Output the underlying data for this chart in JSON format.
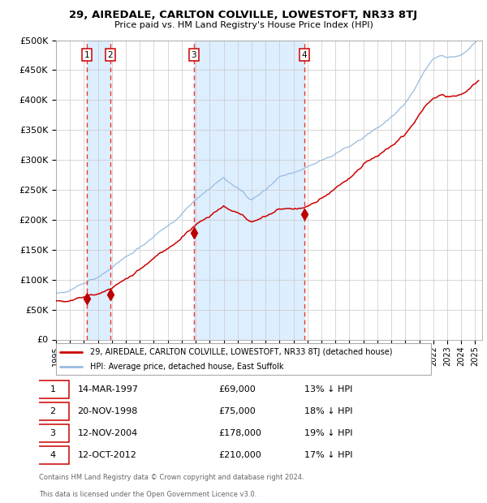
{
  "title": "29, AIREDALE, CARLTON COLVILLE, LOWESTOFT, NR33 8TJ",
  "subtitle": "Price paid vs. HM Land Registry's House Price Index (HPI)",
  "legend_line1": "29, AIREDALE, CARLTON COLVILLE, LOWESTOFT, NR33 8TJ (detached house)",
  "legend_line2": "HPI: Average price, detached house, East Suffolk",
  "footer1": "Contains HM Land Registry data © Crown copyright and database right 2024.",
  "footer2": "This data is licensed under the Open Government Licence v3.0.",
  "sale_events": [
    {
      "num": 1,
      "date": "14-MAR-1997",
      "price": 69000,
      "pct": "13%",
      "x_year": 1997.21
    },
    {
      "num": 2,
      "date": "20-NOV-1998",
      "price": 75000,
      "pct": "18%",
      "x_year": 1998.88
    },
    {
      "num": 3,
      "date": "12-NOV-2004",
      "price": 178000,
      "pct": "19%",
      "x_year": 2004.87
    },
    {
      "num": 4,
      "date": "12-OCT-2012",
      "price": 210000,
      "pct": "17%",
      "x_year": 2012.78
    }
  ],
  "background_color": "#ffffff",
  "chart_bg_color": "#ffffff",
  "shaded_region_color": "#ddeeff",
  "grid_color": "#c8c8c8",
  "hpi_line_color": "#99bbdd",
  "price_line_color": "#cc0000",
  "dashed_line_color": "#ee3333",
  "sale_marker_color": "#bb0000",
  "sale_box_color": "#cc0000",
  "ylim": [
    0,
    500000
  ],
  "xlim_start": 1995.0,
  "xlim_end": 2025.5,
  "yticks": [
    0,
    50000,
    100000,
    150000,
    200000,
    250000,
    300000,
    350000,
    400000,
    450000,
    500000
  ]
}
